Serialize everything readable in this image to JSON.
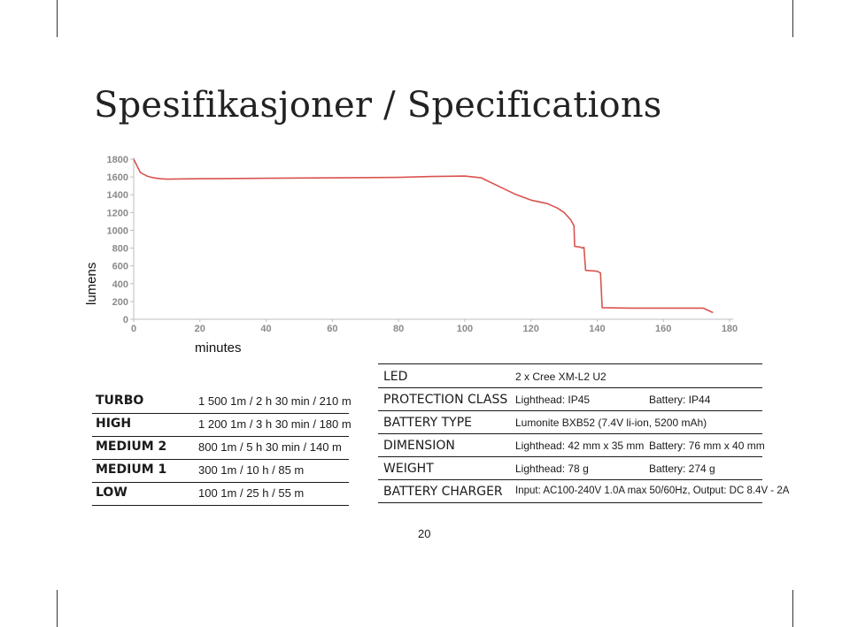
{
  "page": {
    "title": "Spesifikasjoner / Specifications",
    "page_number": "20"
  },
  "chart_data": {
    "type": "line",
    "xlabel": "minutes",
    "ylabel": "lumens",
    "xlim": [
      0,
      180
    ],
    "ylim": [
      0,
      1800
    ],
    "x_ticks": [
      "0",
      "20",
      "40",
      "60",
      "80",
      "100",
      "120",
      "140",
      "160",
      "180"
    ],
    "y_ticks": [
      "0",
      "200",
      "400",
      "600",
      "800",
      "1000",
      "1200",
      "1400",
      "1600",
      "1800"
    ],
    "grid": false,
    "color": "#d9534f",
    "series": [
      {
        "x": [
          0,
          2,
          4,
          6,
          8,
          10,
          20,
          40,
          60,
          80,
          90,
          100,
          105,
          110,
          115,
          120,
          125,
          128,
          130,
          131,
          132,
          133,
          133.2,
          135,
          135.5,
          136,
          136.5,
          140,
          141,
          141.5,
          150,
          160,
          170,
          172,
          175
        ],
        "y": [
          1800,
          1650,
          1610,
          1590,
          1580,
          1575,
          1580,
          1585,
          1590,
          1595,
          1605,
          1610,
          1590,
          1500,
          1410,
          1340,
          1300,
          1250,
          1200,
          1160,
          1120,
          1050,
          820,
          810,
          800,
          810,
          550,
          540,
          520,
          130,
          125,
          125,
          125,
          125,
          75
        ]
      }
    ]
  },
  "modes": [
    {
      "name": "TURBO",
      "value": "1 500 1m / 2 h 30 min / 210 m"
    },
    {
      "name": "HIGH",
      "value": "1 200 1m /  3 h 30 min / 180 m"
    },
    {
      "name": "MEDIUM 2",
      "value": "800 1m  /  5 h 30 min / 140 m"
    },
    {
      "name": "MEDIUM 1",
      "value": "300 1m  / 10  h / 85 m"
    },
    {
      "name": "LOW",
      "value": "100 1m  / 25  h / 55 m"
    }
  ],
  "specs": [
    {
      "label": "LED",
      "value": "2 x Cree XM-L2 U2",
      "value2": ""
    },
    {
      "label": "PROTECTION CLASS",
      "value": "Lighthead: IP45",
      "value2": "Battery: IP44"
    },
    {
      "label": "BATTERY TYPE",
      "value": "Lumonite BXB52 (7.4V li-ion, 5200 mAh)",
      "value2": ""
    },
    {
      "label": "DIMENSION",
      "value": "Lighthead: 42 mm x 35 mm",
      "value2": "Battery: 76 mm x 40 mm"
    },
    {
      "label": "WEIGHT",
      "value": "Lighthead: 78 g",
      "value2": "Battery: 274 g"
    },
    {
      "label": "BATTERY CHARGER",
      "value": "Input: AC100-240V 1.0A max 50/60Hz, Output: DC 8.4V - 2A",
      "value2": ""
    }
  ]
}
